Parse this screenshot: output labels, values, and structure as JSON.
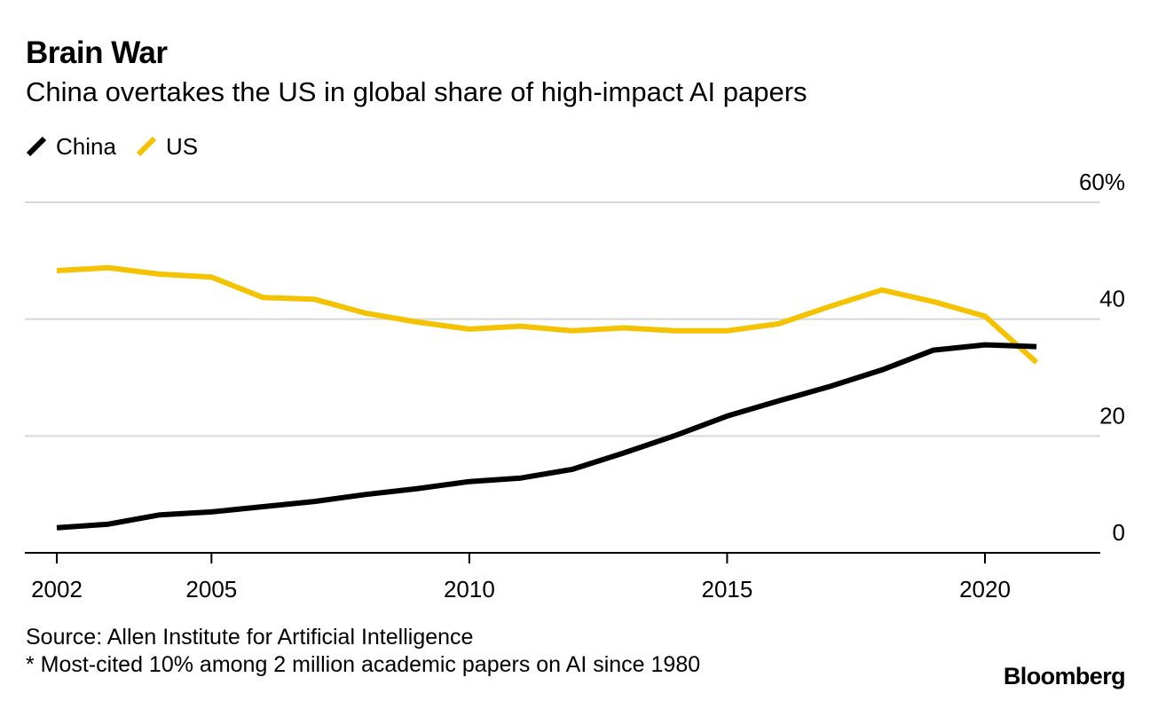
{
  "header": {
    "title": "Brain War",
    "subtitle": "China overtakes the US in global share of high-impact AI papers"
  },
  "legend": [
    {
      "label": "China",
      "color": "#000000"
    },
    {
      "label": "US",
      "color": "#f5c200"
    }
  ],
  "footer": {
    "source": "Source: Allen Institute for Artificial Intelligence",
    "note": "* Most-cited 10% among 2 million academic papers on AI since 1980",
    "brand": "Bloomberg"
  },
  "chart_data": {
    "type": "line",
    "title": "Brain War",
    "subtitle": "China overtakes the US in global share of high-impact AI papers",
    "x": [
      2002,
      2003,
      2004,
      2005,
      2006,
      2007,
      2008,
      2009,
      2010,
      2011,
      2012,
      2013,
      2014,
      2015,
      2016,
      2017,
      2018,
      2019,
      2020,
      2021
    ],
    "series": [
      {
        "name": "China",
        "color": "#000000",
        "values": [
          4.3,
          4.9,
          6.5,
          7.0,
          7.9,
          8.8,
          10.0,
          11.0,
          12.2,
          12.8,
          14.3,
          17.1,
          20.1,
          23.4,
          26.0,
          28.5,
          31.3,
          34.7,
          35.6,
          35.3
        ]
      },
      {
        "name": "US",
        "color": "#f5c200",
        "values": [
          48.3,
          48.8,
          47.7,
          47.2,
          43.7,
          43.4,
          41.0,
          39.5,
          38.3,
          38.8,
          38.0,
          38.5,
          38.0,
          38.0,
          39.2,
          42.2,
          45.0,
          43.0,
          40.5,
          32.6
        ]
      }
    ],
    "x_ticks": [
      2002,
      2005,
      2010,
      2015,
      2020
    ],
    "x_tick_labels": [
      "2002",
      "2005",
      "2010",
      "2015",
      "2020"
    ],
    "xlim": [
      2001.6,
      2023.0
    ],
    "y_ticks": [
      0,
      20,
      40,
      60
    ],
    "y_tick_labels": [
      "0",
      "20",
      "40",
      "60%"
    ],
    "ylim": [
      0,
      60
    ],
    "grid": "horizontal",
    "y_axis_position": "right",
    "legend_position": "top-left"
  }
}
